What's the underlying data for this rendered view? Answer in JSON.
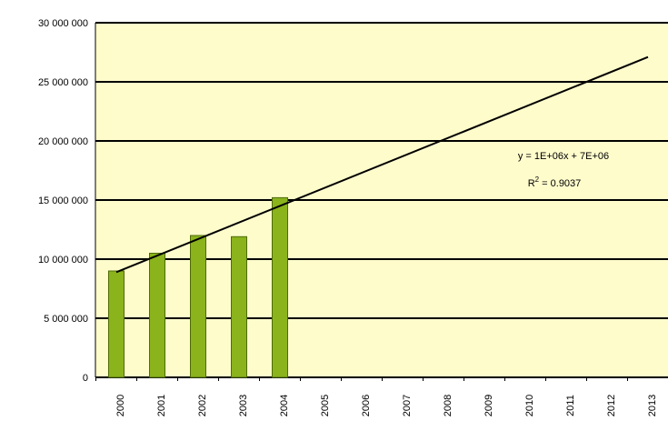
{
  "chart_data": {
    "type": "bar",
    "categories": [
      "2000",
      "2001",
      "2002",
      "2003",
      "2004",
      "2005",
      "2006",
      "2007",
      "2008",
      "2009",
      "2010",
      "2011",
      "2012",
      "2013"
    ],
    "series": [
      {
        "values": [
          9000000,
          10500000,
          12000000,
          11900000,
          15200000,
          null,
          null,
          null,
          null,
          null,
          null,
          null,
          null,
          null
        ]
      }
    ],
    "trendline": {
      "type": "linear",
      "start": {
        "x": "2000",
        "y": 8900000
      },
      "end": {
        "x": "2013",
        "y": 27100000
      },
      "equation": "y = 1E+06x + 7E+06",
      "r_squared_label": "R",
      "r_squared_sup": "2",
      "r_squared_value": " = 0.9037"
    },
    "y_ticks": [
      "0",
      "5 000 000",
      "10 000 000",
      "15 000 000",
      "20 000 000",
      "25 000 000",
      "30 000 000"
    ],
    "ylim": [
      0,
      30000000
    ],
    "grid": true,
    "legend": "none",
    "colors": {
      "bar_fill": "#8ab31c",
      "bar_edge": "#4f6b08",
      "plot_bg": "#fffccc",
      "grid": "#000000",
      "trend": "#000000"
    }
  }
}
